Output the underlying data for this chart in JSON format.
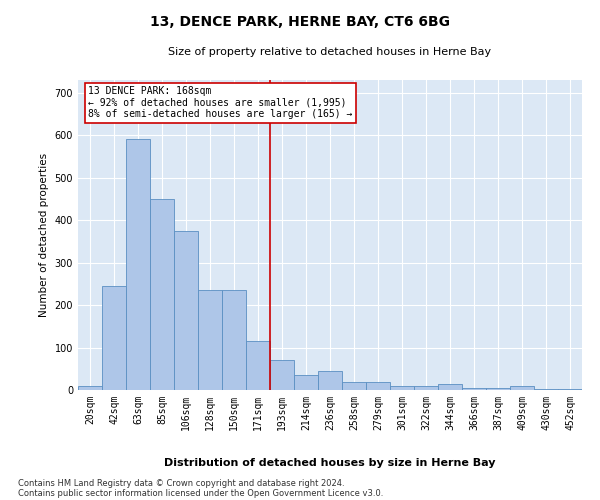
{
  "title": "13, DENCE PARK, HERNE BAY, CT6 6BG",
  "subtitle": "Size of property relative to detached houses in Herne Bay",
  "xlabel": "Distribution of detached houses by size in Herne Bay",
  "ylabel": "Number of detached properties",
  "footnote1": "Contains HM Land Registry data © Crown copyright and database right 2024.",
  "footnote2": "Contains public sector information licensed under the Open Government Licence v3.0.",
  "annotation_title": "13 DENCE PARK: 168sqm",
  "annotation_line1": "← 92% of detached houses are smaller (1,995)",
  "annotation_line2": "8% of semi-detached houses are larger (165) →",
  "bar_color": "#aec6e8",
  "bar_edge_color": "#5a8fc2",
  "vline_color": "#cc0000",
  "annotation_box_color": "#cc0000",
  "background_color": "#dce8f5",
  "categories": [
    "20sqm",
    "42sqm",
    "63sqm",
    "85sqm",
    "106sqm",
    "128sqm",
    "150sqm",
    "171sqm",
    "193sqm",
    "214sqm",
    "236sqm",
    "258sqm",
    "279sqm",
    "301sqm",
    "322sqm",
    "344sqm",
    "366sqm",
    "387sqm",
    "409sqm",
    "430sqm",
    "452sqm"
  ],
  "values": [
    10,
    245,
    590,
    450,
    375,
    235,
    235,
    115,
    70,
    35,
    45,
    20,
    20,
    10,
    10,
    15,
    5,
    5,
    10,
    3,
    3
  ],
  "ylim": [
    0,
    730
  ],
  "yticks": [
    0,
    100,
    200,
    300,
    400,
    500,
    600,
    700
  ],
  "vline_position": 7.5,
  "title_fontsize": 10,
  "subtitle_fontsize": 8,
  "ylabel_fontsize": 7.5,
  "tick_fontsize": 7,
  "annotation_fontsize": 7,
  "xlabel_fontsize": 8,
  "footnote_fontsize": 6
}
